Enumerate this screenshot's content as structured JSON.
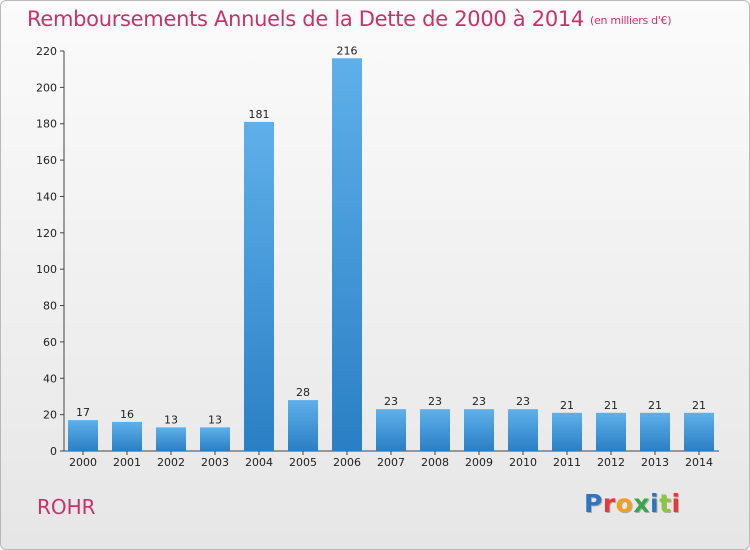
{
  "header": {
    "title": "Remboursements Annuels de la Dette de 2000 à 2014",
    "unit": "(en milliers d'€)"
  },
  "footer": {
    "commune": "ROHR",
    "logo_letters": [
      "P",
      "r",
      "o",
      "x",
      "i",
      "t",
      "i"
    ]
  },
  "colors": {
    "title": "#c8326a",
    "bar_top": "#5fb0ea",
    "bar_bottom": "#2a7fc4",
    "logo": [
      "#2f74c0",
      "#e23a3a",
      "#f0a020",
      "#3aa64c",
      "#2f74c0",
      "#8cc63f",
      "#e23a3a"
    ]
  },
  "chart_data": {
    "type": "bar",
    "title": "Remboursements Annuels de la Dette de 2000 à 2014",
    "xlabel": "",
    "ylabel": "",
    "categories": [
      "2000",
      "2001",
      "2002",
      "2003",
      "2004",
      "2005",
      "2006",
      "2007",
      "2008",
      "2009",
      "2010",
      "2011",
      "2012",
      "2013",
      "2014"
    ],
    "values": [
      17,
      16,
      13,
      13,
      181,
      28,
      216,
      23,
      23,
      23,
      23,
      21,
      21,
      21,
      21
    ],
    "ylim": [
      0,
      220
    ],
    "yticks": [
      0,
      20,
      40,
      60,
      80,
      100,
      120,
      140,
      160,
      180,
      200,
      220
    ],
    "grid": false,
    "legend": "none"
  }
}
